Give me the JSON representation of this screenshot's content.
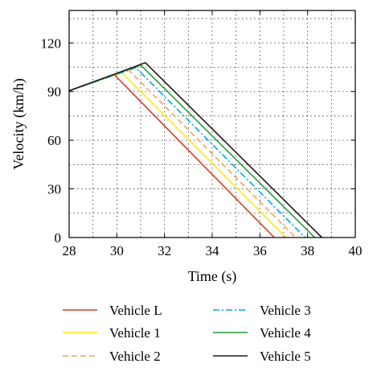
{
  "chart_data": {
    "type": "line",
    "xlabel": "Time (s)",
    "ylabel": "Velocity (km/h)",
    "xlim": [
      28,
      40
    ],
    "ylim": [
      0,
      140
    ],
    "x_ticks": [
      28,
      30,
      32,
      34,
      36,
      38,
      40
    ],
    "y_ticks": [
      0,
      30,
      60,
      90,
      120
    ],
    "grid": true,
    "legend_position": "below",
    "series": [
      {
        "name": "Vehicle L",
        "color": "#d93a1e",
        "dash": "solid",
        "x": [
          28,
          29.9,
          36.6
        ],
        "y": [
          90.5,
          100.3,
          0
        ]
      },
      {
        "name": "Vehicle 1",
        "color": "#ffe812",
        "dash": "solid",
        "x": [
          28,
          30.2,
          37.1
        ],
        "y": [
          90.5,
          101.7,
          0
        ]
      },
      {
        "name": "Vehicle 2",
        "color": "#f4a15c",
        "dash": "dashed",
        "x": [
          28,
          30.5,
          37.5
        ],
        "y": [
          90.5,
          103.2,
          0
        ]
      },
      {
        "name": "Vehicle 3",
        "color": "#00a9e6",
        "dash": "dashdot",
        "x": [
          28,
          30.8,
          37.9
        ],
        "y": [
          90.5,
          104.7,
          0
        ]
      },
      {
        "name": "Vehicle 4",
        "color": "#2a9a3c",
        "dash": "solid",
        "x": [
          28,
          31.0,
          38.3
        ],
        "y": [
          90.5,
          106.4,
          0
        ]
      },
      {
        "name": "Vehicle 5",
        "color": "#1a1a1a",
        "dash": "solid",
        "x": [
          28,
          31.2,
          38.6
        ],
        "y": [
          90.5,
          107.8,
          0
        ]
      }
    ]
  }
}
